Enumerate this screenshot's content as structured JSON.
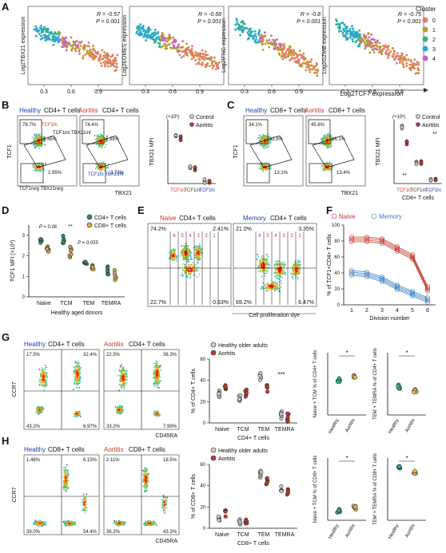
{
  "panels": {
    "A": {
      "label": "A",
      "x_axis_label": "Log2TCF7 expression",
      "y_labels": [
        "Log2TBX21 expression",
        "Log2EOMES expression",
        "Log2IFNG expression",
        "Log2GZMB expression"
      ],
      "stats": [
        {
          "r": "R = -0.57",
          "p": "P < 0.001"
        },
        {
          "r": "R = -0.68",
          "p": "P < 0.001"
        },
        {
          "r": "R = -0.8",
          "p": "P < 0.001"
        },
        {
          "r": "R = -0.75",
          "p": "P < 0.001"
        }
      ],
      "ticks": [
        "0.3",
        "0.6",
        "0.9"
      ],
      "legend_title": "Cluster",
      "clusters": [
        "0",
        "1",
        "2",
        "3",
        "4"
      ],
      "cluster_colors": [
        "#e8766c",
        "#b79f20",
        "#2fb47c",
        "#28a4e0",
        "#cc5fc9"
      ]
    },
    "B": {
      "label": "B",
      "title_healthy": "Healthy CD4+ T cells",
      "title_aortitis": "Aortitis CD4+ T cells",
      "healthy_word": "Healthy",
      "aortitis_word": "Aortitis",
      "y_axis": "TCF1",
      "x_axis": "TBX21",
      "gates_healthy": [
        "78.7%",
        "9.45%",
        "1.95%"
      ],
      "gates_aortitis": [
        "74.4%",
        "6.98%",
        "2.73%"
      ],
      "gate_labels": [
        "TCF1hi",
        "TCF1int TBX21int",
        "TCF1lo TBX21hi",
        "TCF1neg TBX21neg"
      ],
      "chart_title": "TBX21 MFI",
      "scale": "(×10³)",
      "legend": [
        "Control",
        "Aortitis"
      ],
      "x_cats": [
        "TCF1lo",
        "TCF1int",
        "TCF1hi"
      ]
    },
    "C": {
      "label": "C",
      "title_healthy": "Healthy CD8+ T cells",
      "title_aortitis": "Aortitis CD8+ T cells",
      "healthy_word": "Healthy",
      "aortitis_word": "Aortitis",
      "y_axis": "TCF1",
      "x_axis": "TBX21",
      "gates_healthy": [
        "34.1%",
        "42.8%",
        "13.1%"
      ],
      "gates_aortitis": [
        "45.6%",
        "26.1%",
        "13.4%"
      ],
      "chart_title": "TBX21 MFI",
      "scale": "(×10³)",
      "legend": [
        "Control",
        "Aortitis"
      ],
      "x_cats": [
        "TCF1lo",
        "TCF1int",
        "TCF1hi"
      ],
      "x_label": "CD8+ T cells",
      "sig": [
        "**",
        "**"
      ]
    },
    "D": {
      "label": "D",
      "y_axis": "TCF1 MFI (×10³)",
      "x_label": "Healthy aged donors",
      "categories": [
        "Naive",
        "TCM",
        "TEM",
        "TEMRA"
      ],
      "legend": [
        "CD4+ T cells",
        "CD8+ T cells"
      ],
      "annotations": [
        "P = 0.06",
        "**",
        "P = 0.055"
      ],
      "colors": [
        "#2e8b57",
        "#d9a441"
      ]
    },
    "E": {
      "label": "E",
      "title_naive": "Naive CD4+ T cells",
      "title_memory": "Memory CD4+ T cells",
      "naive_word": "Naive",
      "memory_word": "Memory",
      "naive_quads": [
        "74.2%",
        "2.41%",
        "22.7%",
        "0.63%"
      ],
      "memory_quads": [
        "21.0%",
        "3.35%",
        "69.2%",
        "6.47%"
      ],
      "divisions": [
        "6",
        "5",
        "4",
        "3",
        "2",
        "1"
      ],
      "x_axis": "Cell proliferation dye"
    },
    "F": {
      "label": "F",
      "legend": [
        "Naive",
        "Memory"
      ],
      "y_axis": "% of TCF1+CD4+ T cells",
      "x_axis": "Division number",
      "x_ticks": [
        "1",
        "2",
        "3",
        "4",
        "5",
        "6"
      ],
      "y_ticks": [
        "0",
        "20",
        "40",
        "60",
        "80",
        "100"
      ]
    },
    "G": {
      "label": "G",
      "title_healthy": "Healthy CD4+ T cells",
      "title_aortitis": "Aortitis CD4+ T cells",
      "healthy_word": "Healthy",
      "aortitis_word": "Aortitis",
      "y_axis": "CCR7",
      "x_axis": "CD45RA",
      "quads_healthy": [
        "17.5%",
        "32.4%",
        "43.2%",
        "6.97%"
      ],
      "quads_aortitis": [
        "22.5%",
        "36.3%",
        "33.2%",
        "7.99%"
      ],
      "chart_y": "% of CD4+ T cells",
      "chart_x": "CD4+ T cells",
      "categories": [
        "Naive",
        "TCM",
        "TEM",
        "TEMRA"
      ],
      "legend": [
        "Healthy older adults",
        "Aortitis"
      ],
      "sig": "***",
      "small1_y": "Naive + TCM % of CD4+ T cells",
      "small2_y": "TEM + TEMRA % of CD4+ T cells",
      "small_x": [
        "Healthy",
        "Aortitis"
      ],
      "small_sig": "*"
    },
    "H": {
      "label": "H",
      "title_healthy": "Healthy CD8+ T cells",
      "title_aortitis": "Aortitis CD8+ T cells",
      "healthy_word": "Healthy",
      "aortitis_word": "Aortitis",
      "y_axis": "CCR7",
      "x_axis": "CD45RA",
      "quads_healthy": [
        "1.48%",
        "6.15%",
        "38.0%",
        "54.4%"
      ],
      "quads_aortitis": [
        "2.11%",
        "18.5%",
        "36.2%",
        "43.3%"
      ],
      "chart_y": "% of CD8+ T cells",
      "chart_x": "CD8+ T cells",
      "categories": [
        "Naive",
        "TCM",
        "TEM",
        "TEMRA"
      ],
      "legend": [
        "Healthy older adults",
        "Aortitis"
      ],
      "small1_y": "Naive + TCM % of CD8+ T cells",
      "small2_y": "TEM + TEMRA % of CD8+ T cells",
      "small_x": [
        "Healthy",
        "Aortitis"
      ],
      "small_sig": "*"
    }
  },
  "chart_data": [
    {
      "type": "scatter",
      "title": "",
      "xlabel": "Log2TCF7 expression",
      "ylabel": "Log2TBX21 expression",
      "xlim": [
        0.15,
        1.1
      ],
      "note": "R = -0.57, P < 0.001"
    },
    {
      "type": "scatter",
      "xlabel": "Log2TCF7 expression",
      "ylabel": "Log2EOMES expression",
      "xlim": [
        0.15,
        1.1
      ],
      "note": "R = -0.68, P < 0.001"
    },
    {
      "type": "scatter",
      "xlabel": "Log2TCF7 expression",
      "ylabel": "Log2IFNG expression",
      "xlim": [
        0.15,
        1.1
      ],
      "note": "R = -0.8, P < 0.001"
    },
    {
      "type": "scatter",
      "xlabel": "Log2TCF7 expression",
      "ylabel": "Log2GZMB expression",
      "xlim": [
        0.15,
        1.1
      ],
      "note": "R = -0.75, P < 0.001"
    },
    {
      "type": "scatter",
      "title": "TBX21 MFI (CD4)",
      "categories": [
        "TCF1lo",
        "TCF1int",
        "TCF1hi"
      ],
      "series": [
        {
          "name": "Control",
          "values": [
            4.5,
            1.5,
            0.2
          ]
        },
        {
          "name": "Aortitis",
          "values": [
            4.2,
            1.4,
            0.2
          ]
        }
      ]
    },
    {
      "type": "scatter",
      "title": "TBX21 MFI (CD8)",
      "categories": [
        "TCF1lo",
        "TCF1int",
        "TCF1hi"
      ],
      "series": [
        {
          "name": "Control",
          "values": [
            5.3,
            2.0,
            0.2
          ]
        },
        {
          "name": "Aortitis",
          "values": [
            3.8,
            2.0,
            0.3
          ]
        }
      ]
    },
    {
      "type": "scatter",
      "title": "TCF1 MFI",
      "categories": [
        "Naive",
        "TCM",
        "TEM",
        "TEMRA"
      ],
      "series": [
        {
          "name": "CD4+ T cells",
          "values": [
            2.7,
            2.8,
            1.7,
            1.3
          ]
        },
        {
          "name": "CD8+ T cells",
          "values": [
            2.3,
            2.2,
            1.4,
            1.0
          ]
        }
      ]
    },
    {
      "type": "line",
      "xlabel": "Division number",
      "ylabel": "% of TCF1+CD4+ T cells",
      "x": [
        1,
        2,
        3,
        4,
        5,
        6
      ],
      "series": [
        {
          "name": "Naive",
          "values": [
            82,
            82,
            80,
            70,
            60,
            20
          ]
        },
        {
          "name": "Memory",
          "values": [
            40,
            38,
            32,
            22,
            14,
            6
          ]
        }
      ]
    },
    {
      "type": "scatter",
      "ylabel": "% of CD4+ T cells",
      "categories": [
        "Naive",
        "TCM",
        "TEM",
        "TEMRA"
      ],
      "series": [
        {
          "name": "Healthy older adults",
          "values": [
            27,
            24,
            44,
            7
          ]
        },
        {
          "name": "Aortitis",
          "values": [
            34,
            28,
            34,
            5
          ]
        }
      ]
    },
    {
      "type": "scatter",
      "ylabel": "% of CD8+ T cells",
      "categories": [
        "Naive",
        "TCM",
        "TEM",
        "TEMRA"
      ],
      "series": [
        {
          "name": "Healthy older adults",
          "values": [
            10,
            5,
            50,
            36
          ]
        },
        {
          "name": "Aortitis",
          "values": [
            15,
            6,
            44,
            35
          ]
        }
      ]
    }
  ]
}
